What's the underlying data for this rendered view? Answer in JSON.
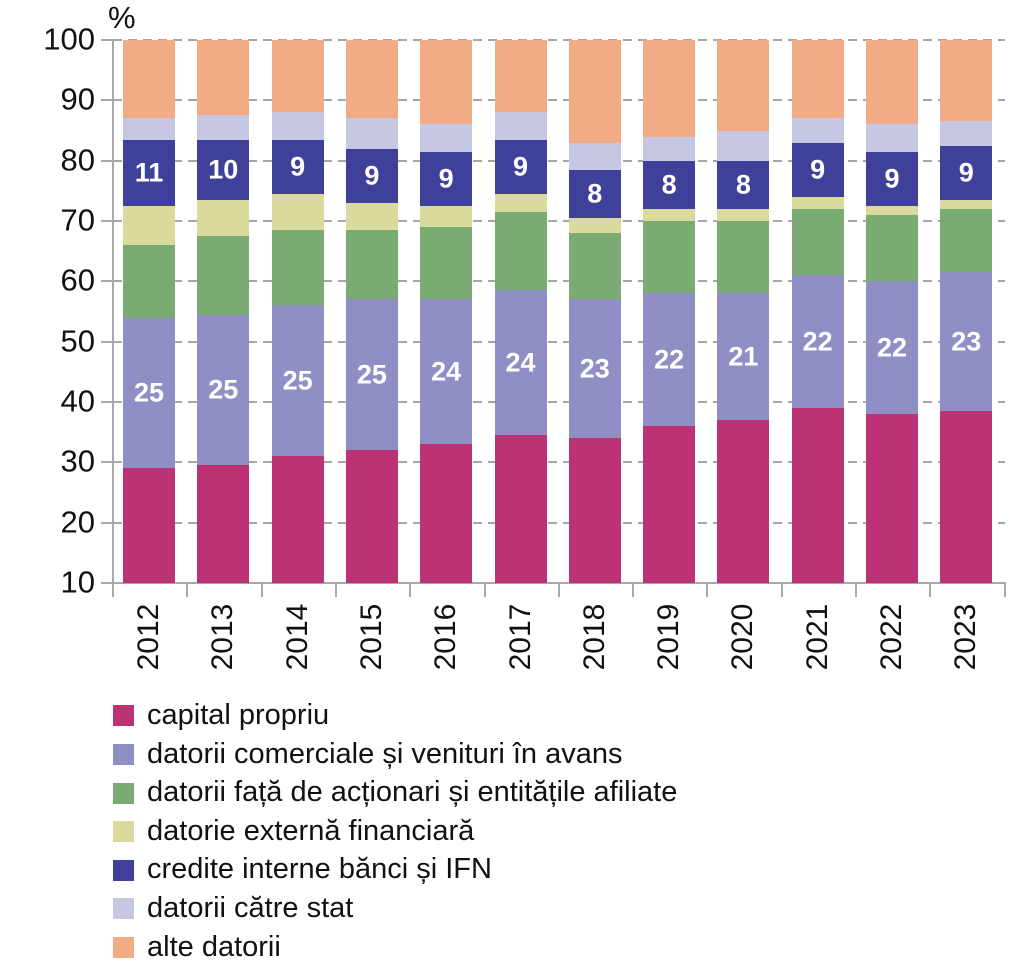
{
  "chart_data": {
    "type": "bar",
    "stacked": true,
    "title": "",
    "xlabel": "",
    "ylabel": "%",
    "ylim": [
      10,
      100
    ],
    "grid": true,
    "grid_color": "#a6a6a6",
    "axis_color": "#a9a9a9",
    "data_label_color": "#ffffff",
    "legend_position": "bottom-left",
    "yticks": [
      "100",
      "90",
      "80",
      "70",
      "60",
      "50",
      "40",
      "30",
      "20",
      "10"
    ],
    "categories": [
      "2012",
      "2013",
      "2014",
      "2015",
      "2016",
      "2017",
      "2018",
      "2019",
      "2020",
      "2021",
      "2022",
      "2023"
    ],
    "series": [
      {
        "name": "capital propriu",
        "color": "#bb3374",
        "show_labels": false,
        "values": [
          29,
          29.5,
          31,
          32,
          33,
          34.5,
          34,
          36,
          37,
          39,
          38,
          38.5
        ]
      },
      {
        "name": "datorii comerciale și venituri în avans",
        "color": "#8f8ec5",
        "show_labels": true,
        "values": [
          25,
          25,
          25,
          25,
          24,
          24,
          23,
          22,
          21,
          22,
          22,
          23
        ],
        "labels": [
          "25",
          "25",
          "25",
          "25",
          "24",
          "24",
          "23",
          "22",
          "21",
          "22",
          "22",
          "23"
        ]
      },
      {
        "name": "datorii față de acționari și entitățile afiliate",
        "color": "#7aab72",
        "show_labels": false,
        "values": [
          12,
          13,
          12.5,
          11.5,
          12,
          13,
          11,
          12,
          12,
          11,
          11,
          10.5
        ]
      },
      {
        "name": "datorie externă financiară",
        "color": "#d9da9b",
        "show_labels": false,
        "values": [
          6.5,
          6,
          6,
          4.5,
          3.5,
          3,
          2.5,
          2,
          2,
          2,
          1.5,
          1.5
        ]
      },
      {
        "name": "credite interne bănci și IFN",
        "color": "#3e4099",
        "show_labels": true,
        "values": [
          11,
          10,
          9,
          9,
          9,
          9,
          8,
          8,
          8,
          9,
          9,
          9
        ],
        "labels": [
          "11",
          "10",
          "9",
          "9",
          "9",
          "9",
          "8",
          "8",
          "8",
          "9",
          "9",
          "9"
        ]
      },
      {
        "name": "datorii către stat",
        "color": "#c6c7e2",
        "show_labels": false,
        "values": [
          3.5,
          4,
          4.5,
          5,
          4.5,
          4.5,
          4.5,
          4,
          5,
          4,
          4.5,
          4
        ]
      },
      {
        "name": "alte datorii",
        "color": "#f1ab85",
        "show_labels": false,
        "values": [
          13,
          12.5,
          12,
          13,
          14,
          12,
          17,
          16,
          15,
          13,
          14,
          13.5
        ]
      }
    ]
  }
}
